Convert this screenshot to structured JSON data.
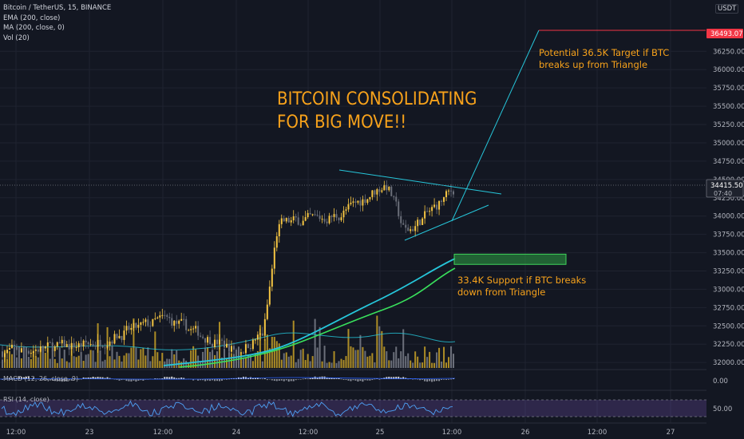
{
  "legend": {
    "symbol": "Bitcoin / TetherUS, 15, BINANCE",
    "ema": "EMA (200, close)",
    "ma": "MA (200, close, 0)",
    "vol": "Vol (20)"
  },
  "unit_button": "USDT",
  "indicators": {
    "macd_label": "MACD (12, 26, close, 9)",
    "rsi_label": "RSI (14, close)",
    "macd_tick": "0.00",
    "rsi_tick": "50.00"
  },
  "annotations": {
    "headline_1": "BITCOIN CONSOLIDATING",
    "headline_2": "FOR BIG MOVE!!",
    "target_1": "Potential 36.5K Target if BTC",
    "target_2": "breaks up from Triangle",
    "support_1": "33.4K Support if BTC breaks",
    "support_2": "down from Triangle"
  },
  "colors": {
    "background": "#131722",
    "annotation": "#f7a21b",
    "candle_up": "#f5c542",
    "candle_down": "#6b6f7a",
    "ema": "#26c6da",
    "ma": "#39e05c",
    "trendline": "#26c6da",
    "target_line": "#f23645",
    "support_box": "#2ea043"
  },
  "chart_data": {
    "type": "candlestick",
    "title": "Bitcoin / TetherUS, 15, BINANCE",
    "y_axis_ticks": [
      36250,
      36000,
      35750,
      35500,
      35250,
      35000,
      34750,
      34500,
      34250,
      34000,
      33750,
      33500,
      33250,
      33000,
      32750,
      32500,
      32250,
      32000
    ],
    "ylim": [
      31950,
      36800
    ],
    "x_axis_ticks": [
      "12:00",
      "23",
      "12:00",
      "24",
      "12:00",
      "25",
      "12:00",
      "26",
      "12:00",
      "27"
    ],
    "current_price": "34415.50",
    "countdown": "07:40",
    "target_price": "36493.07",
    "target_value": 36493.07,
    "support_zone": [
      33340,
      33480
    ],
    "triangle": {
      "upper_trendline": [
        [
          0,
          34560
        ],
        [
          1,
          34250
        ]
      ],
      "lower_trendline": [
        [
          0,
          33700
        ],
        [
          1,
          34130
        ]
      ]
    },
    "key_levels": {
      "support": 33400,
      "target": 36500
    },
    "price_path": [
      {
        "t": "22 12:00",
        "price": 32150
      },
      {
        "t": "23 00:00",
        "price": 32250
      },
      {
        "t": "23 12:00",
        "price": 32600
      },
      {
        "t": "24 00:00",
        "price": 32150
      },
      {
        "t": "24 08:00",
        "price": 32400
      },
      {
        "t": "24 12:00",
        "price": 33900
      },
      {
        "t": "24 18:00",
        "price": 34000
      },
      {
        "t": "25 00:00",
        "price": 34450
      },
      {
        "t": "25 06:00",
        "price": 33750
      },
      {
        "t": "25 10:00",
        "price": 34100
      },
      {
        "t": "25 12:00",
        "price": 34415.5
      }
    ],
    "grid": true
  }
}
